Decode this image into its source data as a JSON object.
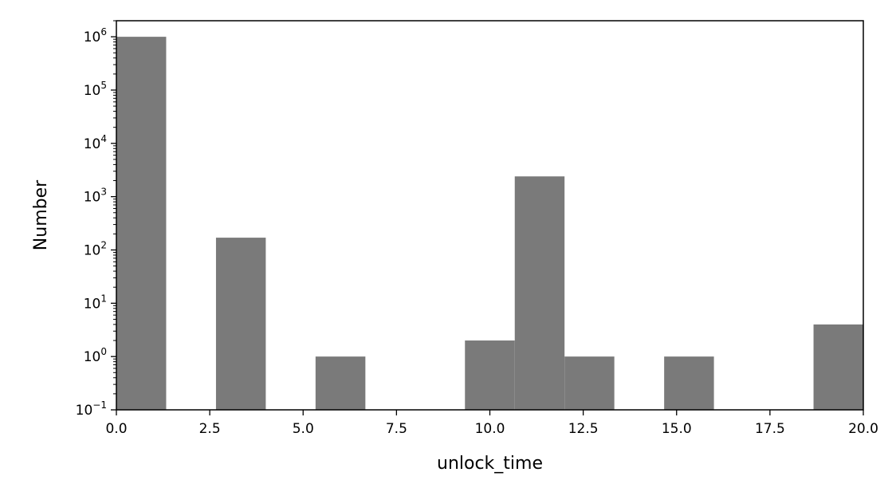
{
  "chart_data": {
    "type": "bar",
    "title": "",
    "xlabel": "unlock_time",
    "ylabel": "Number",
    "xlim": [
      0,
      20
    ],
    "ylim": [
      0.1,
      2000000
    ],
    "yscale": "log",
    "grid": false,
    "bar_color": "#7a7a7a",
    "bins": [
      {
        "x0": 0.0,
        "x1": 1.333,
        "value": 1000000
      },
      {
        "x0": 2.667,
        "x1": 4.0,
        "value": 170
      },
      {
        "x0": 5.333,
        "x1": 6.667,
        "value": 1
      },
      {
        "x0": 9.333,
        "x1": 10.667,
        "value": 2
      },
      {
        "x0": 10.667,
        "x1": 12.0,
        "value": 2400
      },
      {
        "x0": 12.0,
        "x1": 13.333,
        "value": 1
      },
      {
        "x0": 14.667,
        "x1": 16.0,
        "value": 1
      },
      {
        "x0": 18.667,
        "x1": 20.0,
        "value": 4
      }
    ],
    "xticks": [
      {
        "value": 0.0,
        "label": "0.0"
      },
      {
        "value": 2.5,
        "label": "2.5"
      },
      {
        "value": 5.0,
        "label": "5.0"
      },
      {
        "value": 7.5,
        "label": "7.5"
      },
      {
        "value": 10.0,
        "label": "10.0"
      },
      {
        "value": 12.5,
        "label": "12.5"
      },
      {
        "value": 15.0,
        "label": "15.0"
      },
      {
        "value": 17.5,
        "label": "17.5"
      },
      {
        "value": 20.0,
        "label": "20.0"
      }
    ],
    "yticks": [
      {
        "exp": -1,
        "base": "10",
        "sup": "−1"
      },
      {
        "exp": 0,
        "base": "10",
        "sup": "0"
      },
      {
        "exp": 1,
        "base": "10",
        "sup": "1"
      },
      {
        "exp": 2,
        "base": "10",
        "sup": "2"
      },
      {
        "exp": 3,
        "base": "10",
        "sup": "3"
      },
      {
        "exp": 4,
        "base": "10",
        "sup": "4"
      },
      {
        "exp": 5,
        "base": "10",
        "sup": "5"
      },
      {
        "exp": 6,
        "base": "10",
        "sup": "6"
      }
    ]
  }
}
